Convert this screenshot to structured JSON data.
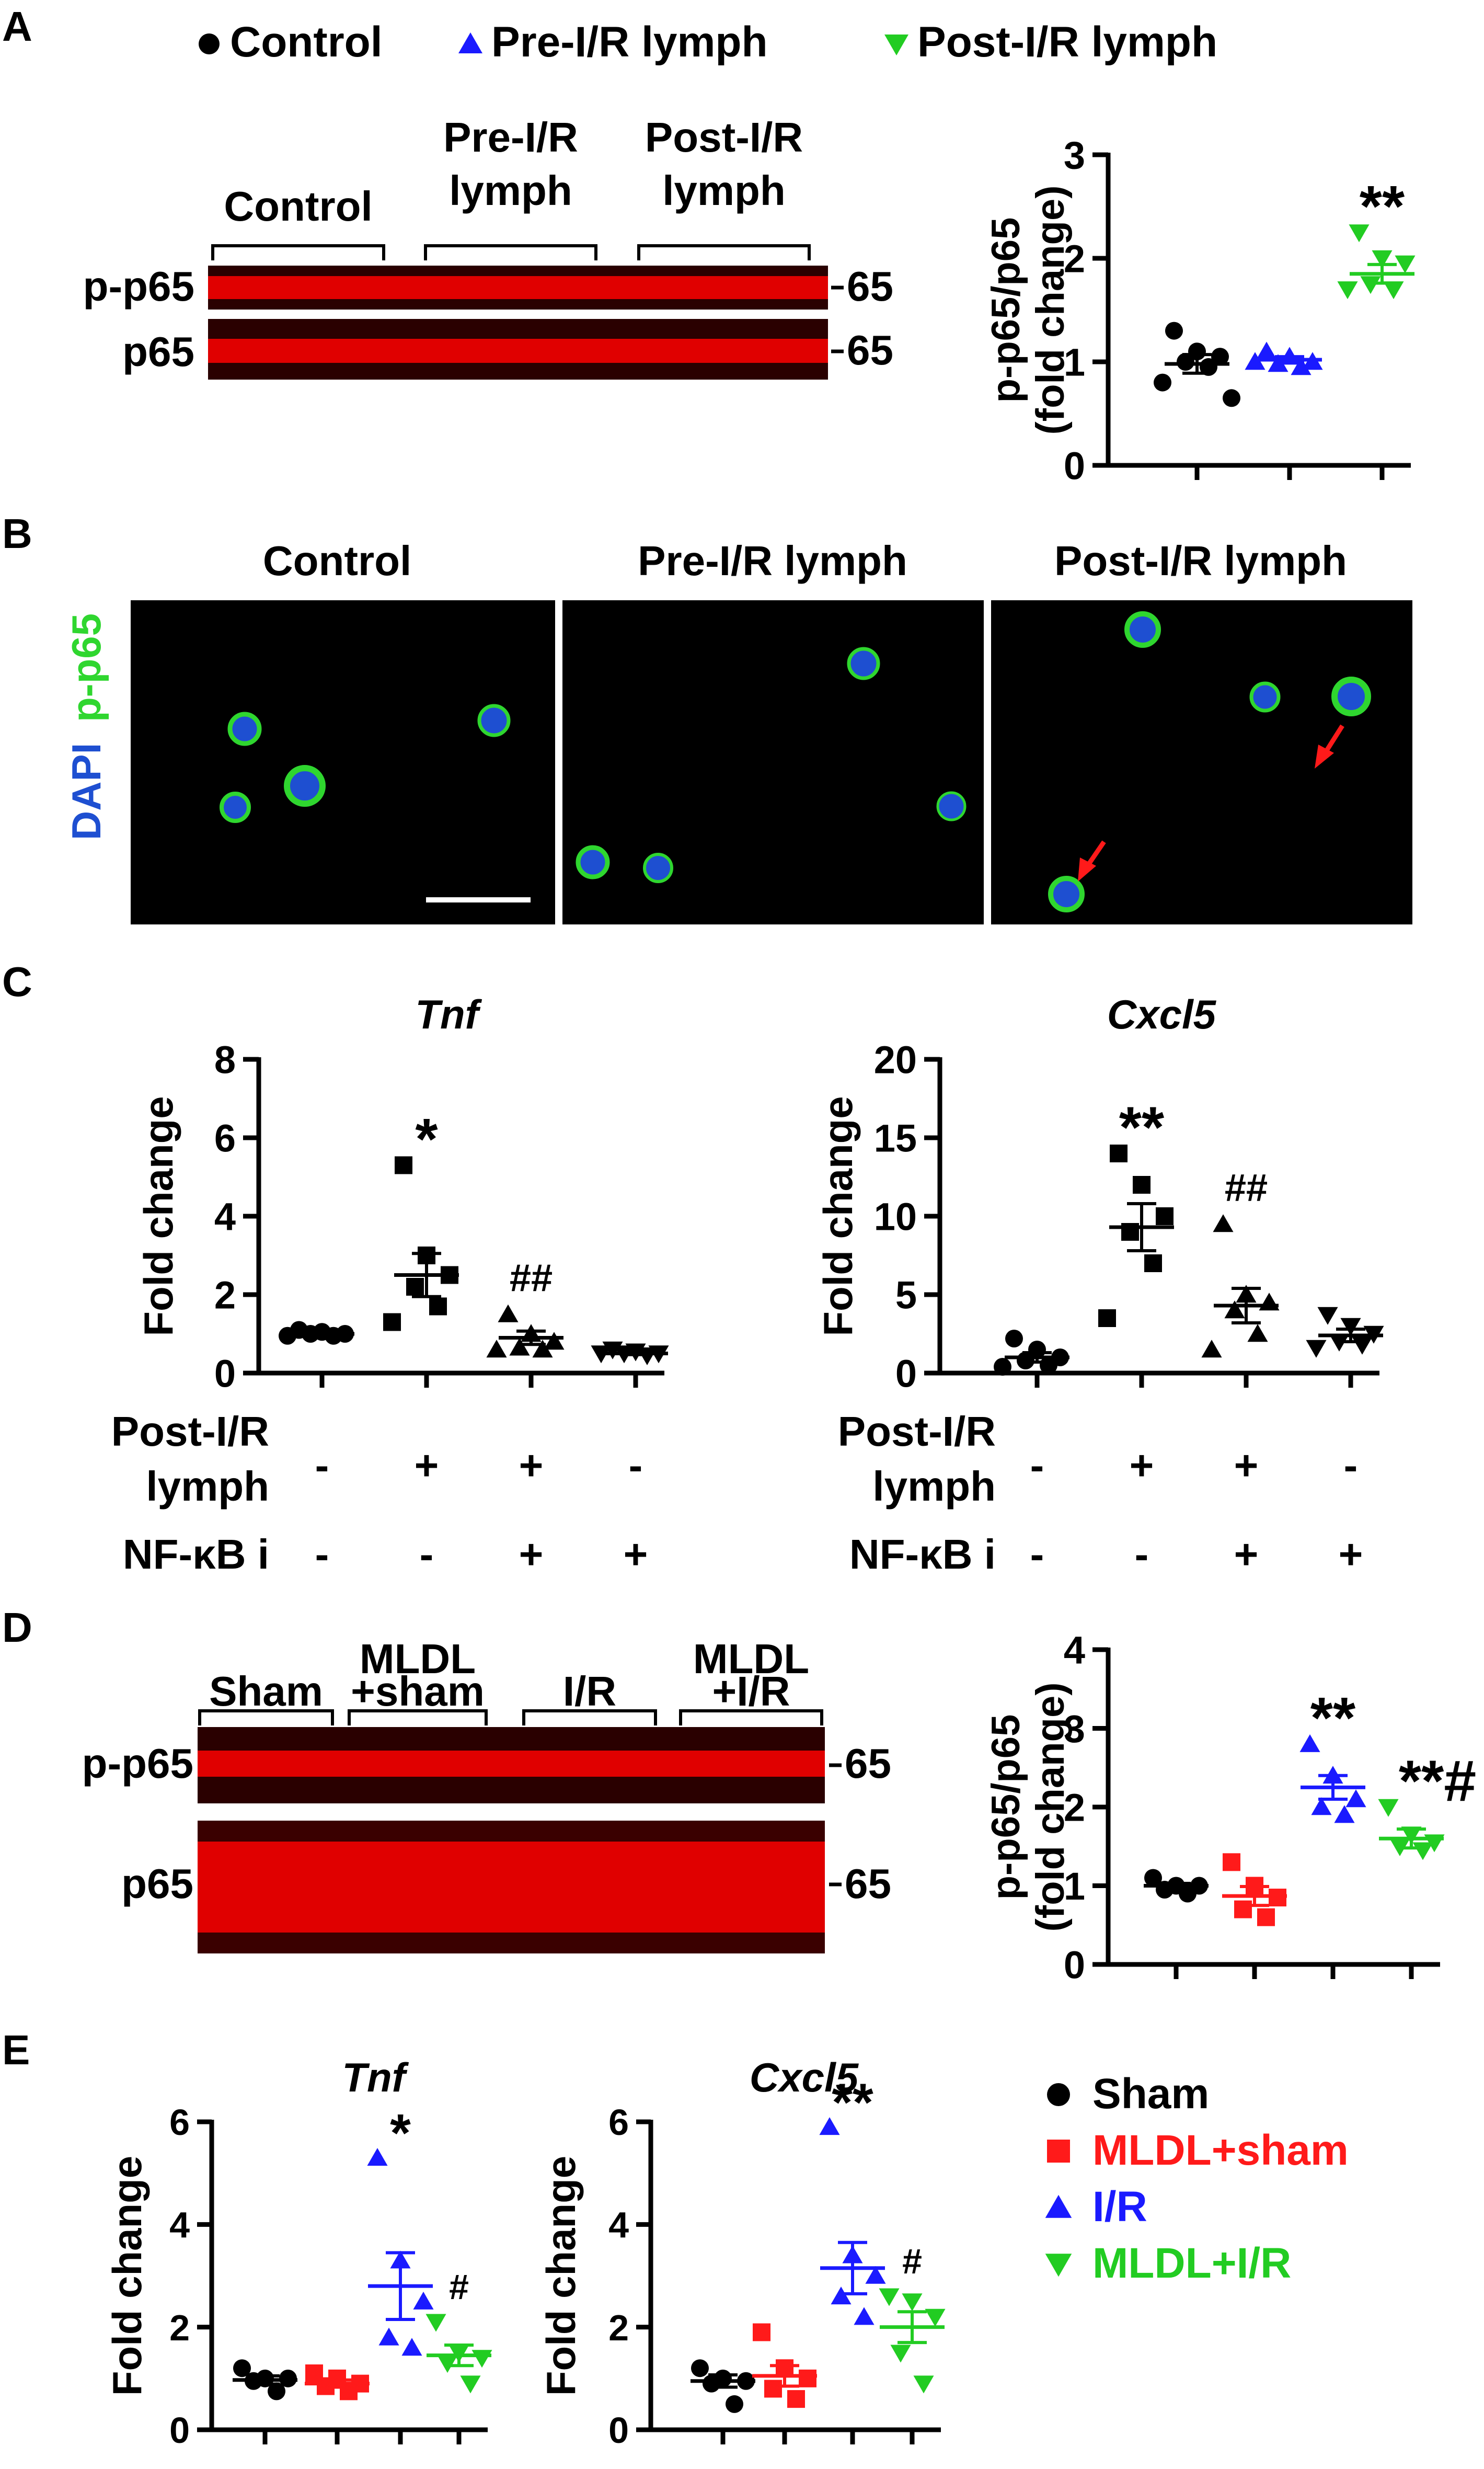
{
  "colors": {
    "black": "#000000",
    "red": "#ff1a1a",
    "blue": "#1a1aff",
    "green": "#22cc22",
    "blot_red": "#e00000",
    "micro_bg": "#000000",
    "dapi": "#1e4fd1",
    "p65": "#2fd62f"
  },
  "panels": {
    "A": {
      "letter": "A",
      "legend": [
        {
          "label": "Control",
          "marker": "circle",
          "color": "black"
        },
        {
          "label": "Pre-I/R lymph",
          "marker": "triangle-up",
          "color": "blue"
        },
        {
          "label": "Post-I/R lymph",
          "marker": "triangle-down",
          "color": "green"
        }
      ],
      "blot": {
        "groups": [
          {
            "lines": [
              "Control"
            ]
          },
          {
            "lines": [
              "Pre-I/R",
              "lymph"
            ]
          },
          {
            "lines": [
              "Post-I/R",
              "lymph"
            ]
          }
        ],
        "rows": [
          "p-p65",
          "p65"
        ],
        "markers": [
          "65",
          "65"
        ]
      }
    },
    "B": {
      "letter": "B",
      "channel_label_dapi": "DAPI",
      "channel_label_p65": "p-p65",
      "titles": [
        "Control",
        "Pre-I/R lymph",
        "Post-I/R lymph"
      ],
      "arrow_icon": "red-arrow-icon",
      "scale_bar_icon": "scale-bar-icon"
    },
    "C": {
      "letter": "C",
      "treat_rows": [
        {
          "label_lines": [
            "Post-I/R",
            "lymph"
          ],
          "signs": [
            "-",
            "+",
            "+",
            "-"
          ]
        },
        {
          "label_lines": [
            "NF-κB i"
          ],
          "signs": [
            "-",
            "-",
            "+",
            "+"
          ]
        }
      ]
    },
    "D": {
      "letter": "D",
      "blot": {
        "groups": [
          {
            "lines": [
              "Sham"
            ]
          },
          {
            "lines": [
              "MLDL",
              "+sham"
            ]
          },
          {
            "lines": [
              "I/R"
            ]
          },
          {
            "lines": [
              "MLDL",
              "+I/R"
            ]
          }
        ],
        "rows": [
          "p-p65",
          "p65"
        ],
        "markers": [
          "65",
          "65"
        ]
      }
    },
    "E": {
      "letter": "E",
      "legend": [
        {
          "label": "Sham",
          "marker": "circle",
          "color": "black"
        },
        {
          "label": "MLDL+sham",
          "marker": "square",
          "color": "red"
        },
        {
          "label": "I/R",
          "marker": "triangle-up",
          "color": "blue"
        },
        {
          "label": "MLDL+I/R",
          "marker": "triangle-down",
          "color": "green"
        }
      ]
    }
  },
  "chart_data": [
    {
      "id": "A",
      "type": "scatter",
      "title": "",
      "ylabel": [
        "p-p65/p65",
        "(fold change)"
      ],
      "ylim": [
        0,
        3
      ],
      "yticks": [
        0,
        1,
        2,
        3
      ],
      "groups": [
        {
          "name": "Control",
          "marker": "circle",
          "color": "black",
          "points": [
            1.3,
            1.1,
            1.05,
            1.0,
            0.95,
            0.8,
            0.65
          ],
          "mean": 0.98,
          "sem": 0.09,
          "annotation": ""
        },
        {
          "name": "Pre-I/R lymph",
          "marker": "triangle-up",
          "color": "blue",
          "points": [
            1.1,
            1.05,
            1.0,
            0.98,
            0.95,
            1.0
          ],
          "mean": 1.02,
          "sem": 0.03,
          "annotation": ""
        },
        {
          "name": "Post-I/R lymph",
          "marker": "triangle-down",
          "color": "green",
          "points": [
            2.25,
            2.0,
            1.95,
            1.75,
            1.7,
            1.7
          ],
          "mean": 1.85,
          "sem": 0.09,
          "annotation": "**"
        }
      ]
    },
    {
      "id": "C-Tnf",
      "type": "scatter",
      "title": "Tnf",
      "ylabel": [
        "Fold change"
      ],
      "ylim": [
        0,
        8
      ],
      "yticks": [
        0,
        2,
        4,
        6,
        8
      ],
      "groups": [
        {
          "name": "g1",
          "marker": "circle",
          "color": "black",
          "points": [
            1.1,
            1.05,
            1.0,
            1.0,
            0.95,
            0.95
          ],
          "mean": 1.0,
          "sem": 0.05,
          "annotation": ""
        },
        {
          "name": "g2",
          "marker": "square",
          "color": "black",
          "points": [
            5.3,
            3.0,
            2.5,
            2.2,
            1.7,
            1.3
          ],
          "mean": 2.5,
          "sem": 0.55,
          "annotation": "*"
        },
        {
          "name": "g3",
          "marker": "triangle-up",
          "color": "black",
          "points": [
            1.5,
            1.0,
            0.8,
            0.65,
            0.6,
            0.6
          ],
          "mean": 0.9,
          "sem": 0.17,
          "annotation": "##"
        },
        {
          "name": "g4",
          "marker": "triangle-down",
          "color": "black",
          "points": [
            0.6,
            0.55,
            0.5,
            0.5,
            0.45,
            0.5
          ],
          "mean": 0.5,
          "sem": 0.03,
          "annotation": ""
        }
      ]
    },
    {
      "id": "C-Cxcl5",
      "type": "scatter",
      "title": "Cxcl5",
      "ylabel": [
        "Fold change"
      ],
      "ylim": [
        0,
        20
      ],
      "yticks": [
        0,
        5,
        10,
        15,
        20
      ],
      "groups": [
        {
          "name": "g1",
          "marker": "circle",
          "color": "black",
          "points": [
            2.2,
            1.5,
            1.0,
            0.8,
            0.5,
            0.4
          ],
          "mean": 1.0,
          "sem": 0.3,
          "annotation": ""
        },
        {
          "name": "g2",
          "marker": "square",
          "color": "black",
          "points": [
            14.0,
            12.0,
            10.0,
            9.0,
            7.0,
            3.5
          ],
          "mean": 9.3,
          "sem": 1.5,
          "annotation": "**"
        },
        {
          "name": "g3",
          "marker": "triangle-up",
          "color": "black",
          "points": [
            9.5,
            5.0,
            4.5,
            4.0,
            2.5,
            1.5
          ],
          "mean": 4.3,
          "sem": 1.1,
          "annotation": "##"
        },
        {
          "name": "g4",
          "marker": "triangle-down",
          "color": "black",
          "points": [
            3.7,
            3.0,
            2.5,
            2.0,
            1.8,
            1.6
          ],
          "mean": 2.4,
          "sem": 0.4,
          "annotation": ""
        }
      ]
    },
    {
      "id": "D",
      "type": "scatter",
      "title": "",
      "ylabel": [
        "p-p65/p65",
        "(fold change)"
      ],
      "ylim": [
        0,
        4
      ],
      "yticks": [
        0,
        1,
        2,
        3,
        4
      ],
      "groups": [
        {
          "name": "Sham",
          "marker": "circle",
          "color": "black",
          "points": [
            1.1,
            1.0,
            1.0,
            0.95,
            0.9
          ],
          "mean": 1.0,
          "sem": 0.03,
          "annotation": ""
        },
        {
          "name": "MLDL+sham",
          "marker": "square",
          "color": "red",
          "points": [
            1.3,
            1.0,
            0.85,
            0.7,
            0.6
          ],
          "mean": 0.87,
          "sem": 0.12,
          "annotation": ""
        },
        {
          "name": "I/R",
          "marker": "triangle-up",
          "color": "blue",
          "points": [
            2.8,
            2.4,
            2.1,
            2.0,
            1.9
          ],
          "mean": 2.25,
          "sem": 0.15,
          "annotation": "**"
        },
        {
          "name": "MLDL+I/R",
          "marker": "triangle-down",
          "color": "green",
          "points": [
            2.0,
            1.65,
            1.55,
            1.5,
            1.45
          ],
          "mean": 1.6,
          "sem": 0.12,
          "annotation": "**#"
        }
      ]
    },
    {
      "id": "E-Tnf",
      "type": "scatter",
      "title": "Tnf",
      "ylabel": [
        "Fold change"
      ],
      "ylim": [
        0,
        6
      ],
      "yticks": [
        0,
        2,
        4,
        6
      ],
      "groups": [
        {
          "name": "Sham",
          "marker": "circle",
          "color": "black",
          "points": [
            1.2,
            1.0,
            1.0,
            0.95,
            0.75
          ],
          "mean": 0.97,
          "sem": 0.08,
          "annotation": ""
        },
        {
          "name": "MLDL+sham",
          "marker": "square",
          "color": "red",
          "points": [
            1.1,
            1.0,
            0.9,
            0.85,
            0.75
          ],
          "mean": 0.9,
          "sem": 0.07,
          "annotation": ""
        },
        {
          "name": "I/R",
          "marker": "triangle-up",
          "color": "blue",
          "points": [
            5.3,
            3.3,
            2.5,
            1.8,
            1.6
          ],
          "mean": 2.8,
          "sem": 0.65,
          "annotation": "*"
        },
        {
          "name": "MLDL+I/R",
          "marker": "triangle-down",
          "color": "green",
          "points": [
            2.1,
            1.5,
            1.4,
            1.3,
            0.9
          ],
          "mean": 1.45,
          "sem": 0.2,
          "annotation": "#"
        }
      ]
    },
    {
      "id": "E-Cxcl5",
      "type": "scatter",
      "title": "Cxcl5",
      "ylabel": [
        "Fold change"
      ],
      "ylim": [
        0,
        6
      ],
      "yticks": [
        0,
        2,
        4,
        6
      ],
      "groups": [
        {
          "name": "Sham",
          "marker": "circle",
          "color": "black",
          "points": [
            1.2,
            1.0,
            0.95,
            0.9,
            0.5
          ],
          "mean": 0.95,
          "sem": 0.12,
          "annotation": ""
        },
        {
          "name": "MLDL+sham",
          "marker": "square",
          "color": "red",
          "points": [
            1.9,
            1.2,
            1.0,
            0.8,
            0.6
          ],
          "mean": 1.05,
          "sem": 0.2,
          "annotation": ""
        },
        {
          "name": "I/R",
          "marker": "triangle-up",
          "color": "blue",
          "points": [
            5.9,
            3.4,
            3.0,
            2.6,
            2.2
          ],
          "mean": 3.15,
          "sem": 0.5,
          "annotation": "**"
        },
        {
          "name": "MLDL+I/R",
          "marker": "triangle-down",
          "color": "green",
          "points": [
            2.6,
            2.5,
            2.2,
            1.5,
            0.9
          ],
          "mean": 2.0,
          "sem": 0.3,
          "annotation": "#"
        }
      ]
    }
  ]
}
